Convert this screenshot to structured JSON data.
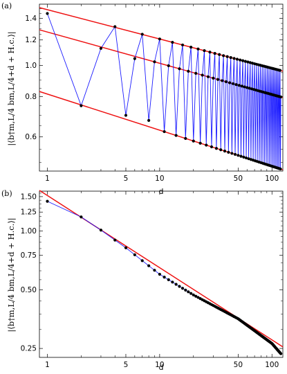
{
  "panel_labels": [
    "(a)",
    "(b)"
  ],
  "chart_data": [
    {
      "type": "scatter",
      "panel": "(a)",
      "xscale": "log",
      "yscale": "log",
      "xlabel": "d",
      "ylabel": "|⟨b†m,L/4 bm,L/4+d + H.c.⟩|",
      "xlim": [
        0.85,
        125
      ],
      "ylim": [
        0.47,
        1.55
      ],
      "xticks": [
        1,
        5,
        10,
        50,
        100
      ],
      "xtick_labels": [
        "1",
        "5",
        "10",
        "50",
        "100"
      ],
      "yticks": [
        0.6,
        0.8,
        1.0,
        1.2,
        1.4
      ],
      "ytick_labels": [
        "0.6",
        "0.8",
        "1.0",
        "1.2",
        "1.4"
      ],
      "grid": false,
      "legend": "none",
      "colors": {
        "data_line": "#1a1aff",
        "fit_line": "#ee1111",
        "points": "#000000"
      },
      "series": [
        {
          "values_desc": "period-3 oscillating data, d = 1..120 (generated in script from branch fits)",
          "d_range": [
            1,
            120
          ],
          "first_points": [
            [
              1,
              1.45
            ],
            [
              2,
              0.75
            ],
            [
              3,
              1.13
            ],
            [
              4,
              1.32
            ],
            [
              5,
              0.7
            ],
            [
              6,
              1.05
            ],
            [
              7,
              1.25
            ],
            [
              8,
              0.675
            ]
          ]
        }
      ],
      "fit_lines": [
        {
          "amplitude": 1.49,
          "exponent": -0.091
        },
        {
          "amplitude": 1.27,
          "exponent": -0.097
        },
        {
          "amplitude": 0.815,
          "exponent": -0.112
        }
      ]
    },
    {
      "type": "scatter",
      "panel": "(b)",
      "xscale": "log",
      "yscale": "log",
      "xlabel": "d",
      "ylabel": "|⟨b†m,L/4 bm,L/4+d + H.c.⟩|",
      "xlim": [
        0.85,
        125
      ],
      "ylim": [
        0.225,
        1.6
      ],
      "xticks": [
        1,
        5,
        10,
        50,
        100
      ],
      "xtick_labels": [
        "1",
        "5",
        "10",
        "50",
        "100"
      ],
      "yticks": [
        0.25,
        0.5,
        0.75,
        1.0,
        1.25,
        1.5
      ],
      "ytick_labels": [
        "0.25",
        "0.50",
        "0.75",
        "1.00",
        "1.25",
        "1.50"
      ],
      "grid": false,
      "legend": "none",
      "colors": {
        "data_line": "#1a1aff",
        "fit_line": "#ee1111",
        "points": "#000000"
      },
      "series": [
        {
          "values_desc": "smoothly decaying data, d = 1..120 (generated in script)",
          "d_range": [
            1,
            120
          ],
          "first_points": [
            [
              1,
              1.42
            ],
            [
              2,
              1.18
            ],
            [
              3,
              1.01
            ],
            [
              5,
              0.82
            ],
            [
              10,
              0.6
            ],
            [
              20,
              0.47
            ],
            [
              50,
              0.355
            ],
            [
              100,
              0.265
            ],
            [
              120,
              0.235
            ]
          ]
        }
      ],
      "fit_lines": [
        {
          "amplitude": 1.52,
          "exponent": -0.37
        }
      ]
    }
  ]
}
